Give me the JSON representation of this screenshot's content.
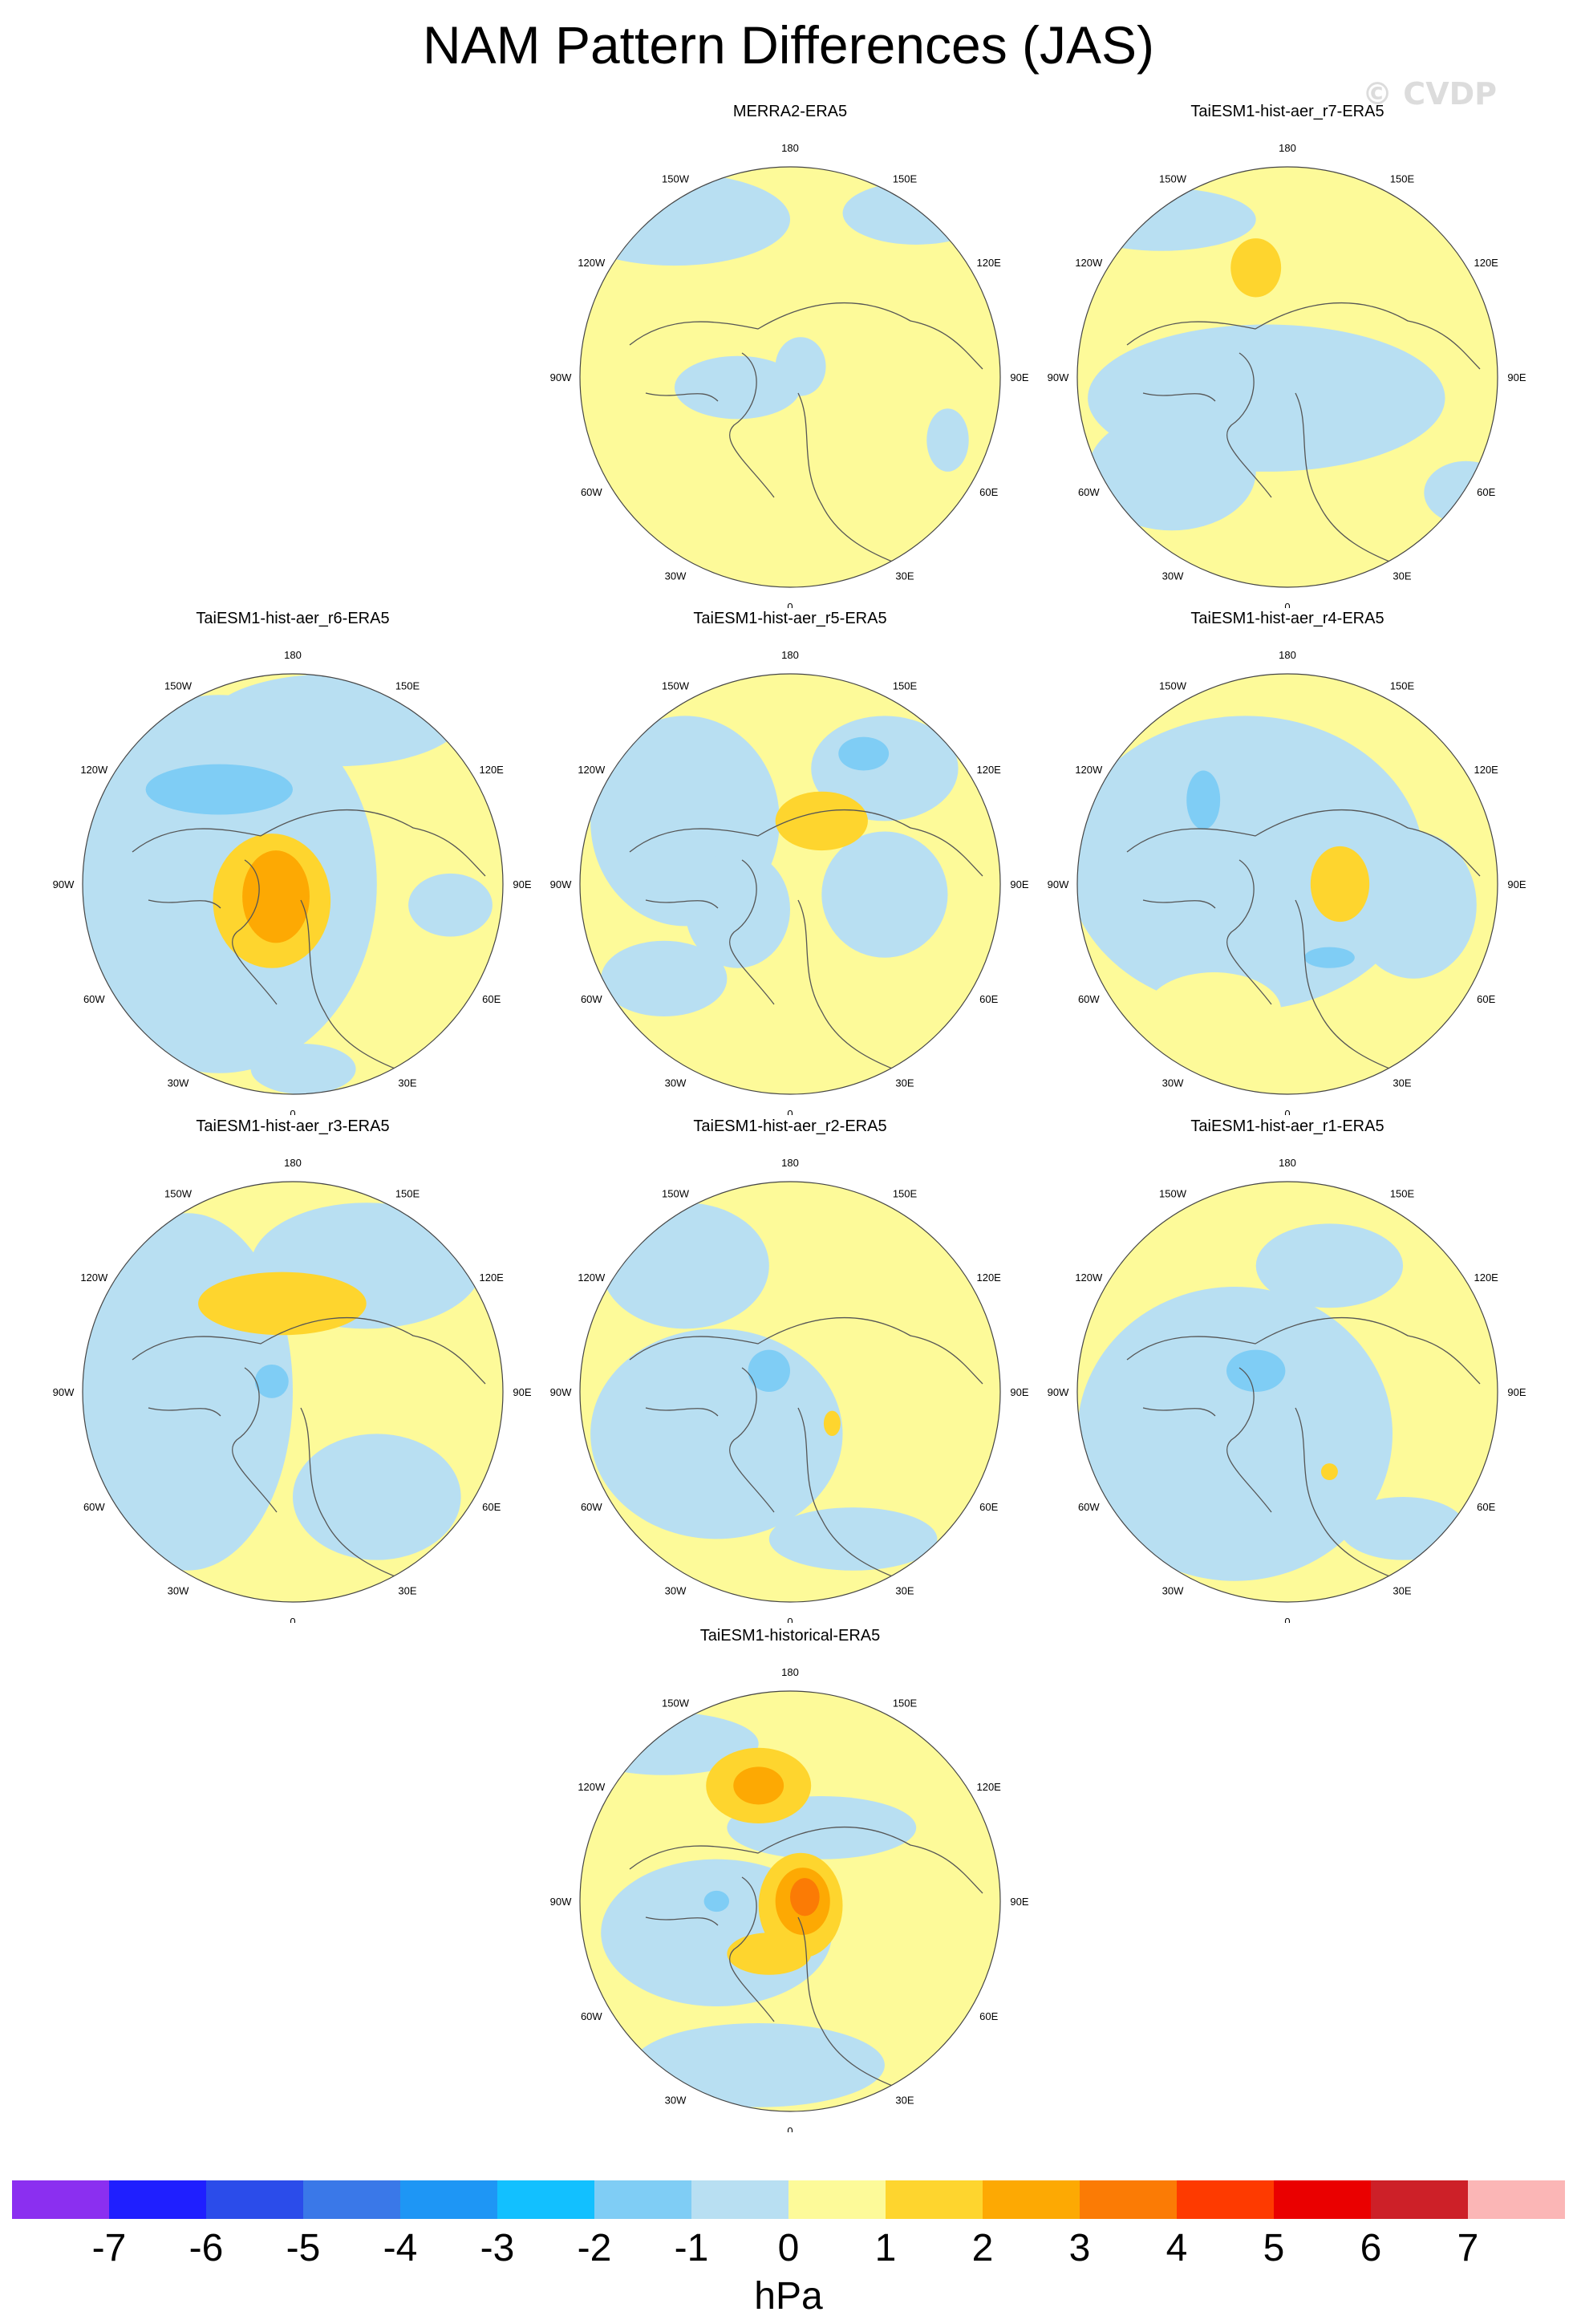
{
  "figure": {
    "title": "NAM Pattern Differences (JAS)",
    "watermark": "© CVDP"
  },
  "lon_labels": {
    "top": "180",
    "bottom": "0",
    "upper_left": "150W",
    "upper_right": "150E",
    "mid_upper_left": "120W",
    "mid_upper_right": "120E",
    "left": "90W",
    "right": "90E",
    "mid_lower_left": "60W",
    "mid_lower_right": "60E",
    "lower_left": "30W",
    "lower_right": "30E"
  },
  "panels": [
    {
      "label": "MERRA2-ERA5",
      "blobs": [
        {
          "dx": -0.55,
          "dy": -0.75,
          "rx": 0.55,
          "ry": 0.22,
          "level": -1
        },
        {
          "dx": -0.25,
          "dy": 0.05,
          "rx": 0.3,
          "ry": 0.15,
          "level": -1
        },
        {
          "dx": 0.05,
          "dy": -0.05,
          "rx": 0.12,
          "ry": 0.14,
          "level": -1
        },
        {
          "dx": 0.6,
          "dy": -0.78,
          "rx": 0.35,
          "ry": 0.15,
          "level": -1
        },
        {
          "dx": 0.75,
          "dy": 0.3,
          "rx": 0.1,
          "ry": 0.15,
          "level": -1
        }
      ]
    },
    {
      "label": "TaiESM1-hist-aer_r7-ERA5",
      "blobs": [
        {
          "dx": -0.1,
          "dy": 0.1,
          "rx": 0.85,
          "ry": 0.35,
          "level": -1
        },
        {
          "dx": -0.55,
          "dy": 0.45,
          "rx": 0.4,
          "ry": 0.28,
          "level": -1
        },
        {
          "dx": -0.6,
          "dy": -0.75,
          "rx": 0.45,
          "ry": 0.15,
          "level": -1
        },
        {
          "dx": 0.85,
          "dy": 0.55,
          "rx": 0.2,
          "ry": 0.15,
          "level": -1
        },
        {
          "dx": -0.15,
          "dy": -0.52,
          "rx": 0.12,
          "ry": 0.14,
          "level": 1
        }
      ]
    },
    {
      "label": "TaiESM1-hist-aer_r6-ERA5",
      "blobs": [
        {
          "dx": -0.35,
          "dy": 0.0,
          "rx": 0.75,
          "ry": 0.9,
          "level": -1
        },
        {
          "dx": 0.2,
          "dy": -0.78,
          "rx": 0.6,
          "ry": 0.22,
          "level": -1
        },
        {
          "dx": -0.35,
          "dy": -0.45,
          "rx": 0.35,
          "ry": 0.12,
          "level": -2
        },
        {
          "dx": -0.1,
          "dy": 0.08,
          "rx": 0.28,
          "ry": 0.32,
          "level": 1
        },
        {
          "dx": -0.08,
          "dy": 0.06,
          "rx": 0.16,
          "ry": 0.22,
          "level": 2
        },
        {
          "dx": 0.75,
          "dy": 0.1,
          "rx": 0.2,
          "ry": 0.15,
          "level": -1
        },
        {
          "dx": 0.05,
          "dy": 0.88,
          "rx": 0.25,
          "ry": 0.12,
          "level": -1
        }
      ]
    },
    {
      "label": "TaiESM1-hist-aer_r5-ERA5",
      "blobs": [
        {
          "dx": -0.5,
          "dy": -0.3,
          "rx": 0.45,
          "ry": 0.5,
          "level": -1
        },
        {
          "dx": -0.25,
          "dy": 0.12,
          "rx": 0.25,
          "ry": 0.28,
          "level": -1
        },
        {
          "dx": 0.45,
          "dy": -0.55,
          "rx": 0.35,
          "ry": 0.25,
          "level": -1
        },
        {
          "dx": 0.35,
          "dy": -0.62,
          "rx": 0.12,
          "ry": 0.08,
          "level": -2
        },
        {
          "dx": 0.45,
          "dy": 0.05,
          "rx": 0.3,
          "ry": 0.3,
          "level": -1
        },
        {
          "dx": -0.6,
          "dy": 0.45,
          "rx": 0.3,
          "ry": 0.18,
          "level": -1
        },
        {
          "dx": 0.15,
          "dy": -0.3,
          "rx": 0.22,
          "ry": 0.14,
          "level": 1
        }
      ]
    },
    {
      "label": "TaiESM1-hist-aer_r4-ERA5",
      "blobs": [
        {
          "dx": -0.2,
          "dy": -0.1,
          "rx": 0.85,
          "ry": 0.7,
          "level": -1
        },
        {
          "dx": 0.6,
          "dy": 0.1,
          "rx": 0.3,
          "ry": 0.35,
          "level": -1
        },
        {
          "dx": -0.4,
          "dy": -0.4,
          "rx": 0.08,
          "ry": 0.14,
          "level": -2
        },
        {
          "dx": 0.25,
          "dy": 0.0,
          "rx": 0.14,
          "ry": 0.18,
          "level": 1
        },
        {
          "dx": -0.35,
          "dy": 0.6,
          "rx": 0.32,
          "ry": 0.18,
          "level": 0
        },
        {
          "dx": 0.2,
          "dy": 0.35,
          "rx": 0.12,
          "ry": 0.05,
          "level": -2
        }
      ]
    },
    {
      "label": "TaiESM1-hist-aer_r3-ERA5",
      "blobs": [
        {
          "dx": -0.5,
          "dy": 0.0,
          "rx": 0.5,
          "ry": 0.85,
          "level": -1
        },
        {
          "dx": 0.35,
          "dy": -0.6,
          "rx": 0.55,
          "ry": 0.3,
          "level": -1
        },
        {
          "dx": 0.4,
          "dy": 0.5,
          "rx": 0.4,
          "ry": 0.3,
          "level": -1
        },
        {
          "dx": -0.05,
          "dy": -0.42,
          "rx": 0.4,
          "ry": 0.15,
          "level": 1
        },
        {
          "dx": -0.1,
          "dy": -0.05,
          "rx": 0.08,
          "ry": 0.08,
          "level": -2
        }
      ]
    },
    {
      "label": "TaiESM1-hist-aer_r2-ERA5",
      "blobs": [
        {
          "dx": -0.35,
          "dy": 0.2,
          "rx": 0.6,
          "ry": 0.5,
          "level": -1
        },
        {
          "dx": -0.5,
          "dy": -0.6,
          "rx": 0.4,
          "ry": 0.3,
          "level": -1
        },
        {
          "dx": 0.3,
          "dy": 0.7,
          "rx": 0.4,
          "ry": 0.15,
          "level": -1
        },
        {
          "dx": -0.1,
          "dy": -0.1,
          "rx": 0.1,
          "ry": 0.1,
          "level": -2
        },
        {
          "dx": 0.2,
          "dy": 0.15,
          "rx": 0.04,
          "ry": 0.06,
          "level": 1
        }
      ]
    },
    {
      "label": "TaiESM1-hist-aer_r1-ERA5",
      "blobs": [
        {
          "dx": -0.25,
          "dy": 0.2,
          "rx": 0.75,
          "ry": 0.7,
          "level": -1
        },
        {
          "dx": 0.2,
          "dy": -0.6,
          "rx": 0.35,
          "ry": 0.2,
          "level": -1
        },
        {
          "dx": 0.55,
          "dy": 0.65,
          "rx": 0.3,
          "ry": 0.15,
          "level": -1
        },
        {
          "dx": -0.15,
          "dy": -0.1,
          "rx": 0.14,
          "ry": 0.1,
          "level": -2
        },
        {
          "dx": 0.2,
          "dy": 0.38,
          "rx": 0.04,
          "ry": 0.04,
          "level": 1
        }
      ]
    },
    {
      "label": "TaiESM1-historical-ERA5",
      "blobs": [
        {
          "dx": -0.35,
          "dy": 0.15,
          "rx": 0.55,
          "ry": 0.35,
          "level": -1
        },
        {
          "dx": 0.15,
          "dy": -0.35,
          "rx": 0.45,
          "ry": 0.15,
          "level": -1
        },
        {
          "dx": -0.6,
          "dy": -0.75,
          "rx": 0.45,
          "ry": 0.15,
          "level": -1
        },
        {
          "dx": -0.15,
          "dy": 0.78,
          "rx": 0.6,
          "ry": 0.2,
          "level": -1
        },
        {
          "dx": -0.15,
          "dy": -0.55,
          "rx": 0.25,
          "ry": 0.18,
          "level": 1
        },
        {
          "dx": -0.15,
          "dy": -0.55,
          "rx": 0.12,
          "ry": 0.09,
          "level": 2
        },
        {
          "dx": 0.05,
          "dy": 0.02,
          "rx": 0.2,
          "ry": 0.25,
          "level": 1
        },
        {
          "dx": 0.06,
          "dy": 0.0,
          "rx": 0.13,
          "ry": 0.16,
          "level": 2
        },
        {
          "dx": 0.07,
          "dy": -0.02,
          "rx": 0.07,
          "ry": 0.09,
          "level": 3
        },
        {
          "dx": -0.1,
          "dy": 0.25,
          "rx": 0.2,
          "ry": 0.1,
          "level": 1
        },
        {
          "dx": -0.35,
          "dy": 0.0,
          "rx": 0.06,
          "ry": 0.05,
          "level": -2
        }
      ]
    }
  ],
  "colorbar": {
    "colors": [
      "#8b2ff0",
      "#1f1fff",
      "#2b4cea",
      "#3a78e8",
      "#1e96f5",
      "#12c0ff",
      "#7fcdf5",
      "#b8dff2",
      "#fdfa99",
      "#fed52e",
      "#fda903",
      "#fb7b05",
      "#fe3a00",
      "#ea0000",
      "#cd2028",
      "#fbb6b6"
    ],
    "labels": [
      "-7",
      "-6",
      "-5",
      "-4",
      "-3",
      "-2",
      "-1",
      "0",
      "1",
      "2",
      "3",
      "4",
      "5",
      "6",
      "7"
    ],
    "units": "hPa"
  }
}
